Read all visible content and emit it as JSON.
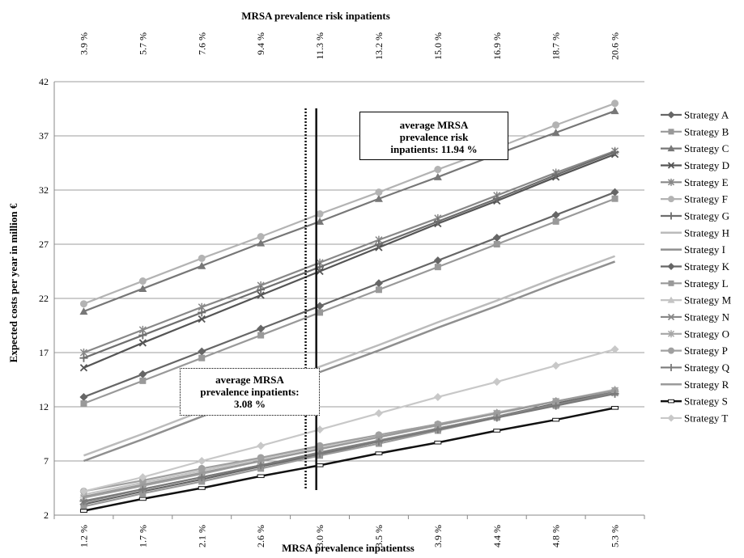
{
  "chart_data": {
    "type": "line",
    "top_axis_title": "MRSA  prevalence risk inpatients",
    "top_ticks": [
      "3.9 %",
      "5.7 %",
      "7.6 %",
      "9.4 %",
      "11.3 %",
      "13.2 %",
      "15.0 %",
      "16.9 %",
      "18.7 %",
      "20.6 %"
    ],
    "xlabel": "MRSA  prevalence inpatientss",
    "categories": [
      "1.2 %",
      "1.7 %",
      "2.1 %",
      "2.6 %",
      "3.0 %",
      "3.5 %",
      "3.9 %",
      "4.4 %",
      "4.8 %",
      "5.3 %"
    ],
    "ylabel": "Expected costs per year in million €",
    "ylim": [
      2,
      42
    ],
    "yticks": [
      2,
      7,
      12,
      17,
      22,
      27,
      32,
      37,
      42
    ],
    "grid": true,
    "legend_position": "right",
    "vlines": [
      {
        "x": 4.26,
        "style": "dotted",
        "label": "average MRSA prevalence inpatients: 3.08 %"
      },
      {
        "x": 4.44,
        "style": "solid",
        "label": "average MRSA prevalence risk inpatients: 11.94 %"
      }
    ],
    "annotations": {
      "right": [
        "average MRSA",
        "prevalence risk",
        "inpatients:  11.94 %"
      ],
      "left": [
        "average MRSA",
        "prevalence inpatients:",
        "3.08 %"
      ]
    },
    "series": [
      {
        "name": "Strategy A",
        "color": "#666666",
        "width": 2.2,
        "marker": "diamond",
        "values": [
          12.9,
          15.0,
          17.1,
          19.2,
          21.3,
          23.4,
          25.5,
          27.6,
          29.7,
          31.8
        ]
      },
      {
        "name": "Strategy B",
        "color": "#999999",
        "width": 2.2,
        "marker": "square",
        "values": [
          12.3,
          14.4,
          16.5,
          18.6,
          20.7,
          22.8,
          24.9,
          27.0,
          29.1,
          31.2
        ]
      },
      {
        "name": "Strategy C",
        "color": "#777777",
        "width": 2.2,
        "marker": "triangle",
        "values": [
          20.8,
          22.9,
          25.0,
          27.1,
          29.1,
          31.2,
          33.2,
          35.3,
          37.3,
          39.3
        ]
      },
      {
        "name": "Strategy D",
        "color": "#555555",
        "width": 2.2,
        "marker": "x",
        "values": [
          15.6,
          17.9,
          20.1,
          22.3,
          24.5,
          26.7,
          28.9,
          31.0,
          33.2,
          35.3
        ]
      },
      {
        "name": "Strategy E",
        "color": "#888888",
        "width": 2.2,
        "marker": "star",
        "values": [
          17.0,
          19.1,
          21.2,
          23.2,
          25.3,
          27.4,
          29.4,
          31.5,
          33.6,
          35.6
        ]
      },
      {
        "name": "Strategy F",
        "color": "#b3b3b3",
        "width": 2.2,
        "marker": "circle",
        "values": [
          21.5,
          23.6,
          25.7,
          27.7,
          29.8,
          31.8,
          33.9,
          35.9,
          38.0,
          40.0
        ]
      },
      {
        "name": "Strategy G",
        "color": "#6e6e6e",
        "width": 2.2,
        "marker": "plus",
        "values": [
          16.5,
          18.6,
          20.7,
          22.8,
          24.9,
          27.0,
          29.1,
          31.2,
          33.4,
          35.5
        ]
      },
      {
        "name": "Strategy H",
        "color": "#bbbbbb",
        "width": 2.5,
        "marker": "none",
        "values": [
          7.5,
          9.5,
          11.6,
          13.6,
          15.7,
          17.7,
          19.8,
          21.8,
          23.9,
          25.9
        ]
      },
      {
        "name": "Strategy I",
        "color": "#8f8f8f",
        "width": 2.5,
        "marker": "none",
        "values": [
          7.0,
          9.0,
          11.1,
          13.1,
          15.2,
          17.2,
          19.3,
          21.3,
          23.4,
          25.4
        ]
      },
      {
        "name": "Strategy K",
        "color": "#666666",
        "width": 2.2,
        "marker": "diamond",
        "values": [
          3.0,
          4.2,
          5.3,
          6.5,
          7.6,
          8.8,
          10.0,
          11.1,
          12.3,
          13.4
        ]
      },
      {
        "name": "Strategy L",
        "color": "#999999",
        "width": 2.2,
        "marker": "square",
        "values": [
          2.8,
          4.0,
          5.1,
          6.3,
          7.5,
          8.6,
          9.8,
          11.0,
          12.1,
          13.3
        ]
      },
      {
        "name": "Strategy M",
        "color": "#c4c4c4",
        "width": 2.2,
        "marker": "triangle",
        "values": [
          3.9,
          5.0,
          6.1,
          7.2,
          8.3,
          9.4,
          10.4,
          11.5,
          12.5,
          13.6
        ]
      },
      {
        "name": "Strategy N",
        "color": "#888888",
        "width": 2.2,
        "marker": "x",
        "values": [
          3.2,
          4.4,
          5.5,
          6.6,
          7.8,
          8.9,
          10.0,
          11.1,
          12.2,
          13.3
        ]
      },
      {
        "name": "Strategy O",
        "color": "#a6a6a6",
        "width": 2.2,
        "marker": "star",
        "values": [
          3.6,
          4.7,
          5.8,
          7.0,
          8.1,
          9.2,
          10.3,
          11.4,
          12.5,
          13.5
        ]
      },
      {
        "name": "Strategy P",
        "color": "#a0a0a0",
        "width": 2.2,
        "marker": "circle",
        "values": [
          4.2,
          5.2,
          6.3,
          7.3,
          8.4,
          9.4,
          10.4,
          11.4,
          12.5,
          13.5
        ]
      },
      {
        "name": "Strategy Q",
        "color": "#7a7a7a",
        "width": 2.2,
        "marker": "plus",
        "values": [
          3.3,
          4.4,
          5.5,
          6.6,
          7.7,
          8.8,
          9.9,
          11.0,
          12.1,
          13.2
        ]
      },
      {
        "name": "Strategy R",
        "color": "#9a9a9a",
        "width": 2.5,
        "marker": "none",
        "values": [
          3.7,
          4.8,
          5.9,
          7.0,
          8.1,
          9.2,
          10.3,
          11.4,
          12.5,
          13.5
        ]
      },
      {
        "name": "Strategy S",
        "color": "#111111",
        "width": 2.5,
        "marker": "dash",
        "values": [
          2.4,
          3.5,
          4.5,
          5.6,
          6.6,
          7.7,
          8.7,
          9.8,
          10.8,
          11.9
        ]
      },
      {
        "name": "Strategy T",
        "color": "#c8c8c8",
        "width": 2.2,
        "marker": "diamond",
        "values": [
          4.2,
          5.5,
          7.0,
          8.4,
          9.9,
          11.4,
          12.9,
          14.3,
          15.8,
          17.3
        ]
      }
    ]
  }
}
